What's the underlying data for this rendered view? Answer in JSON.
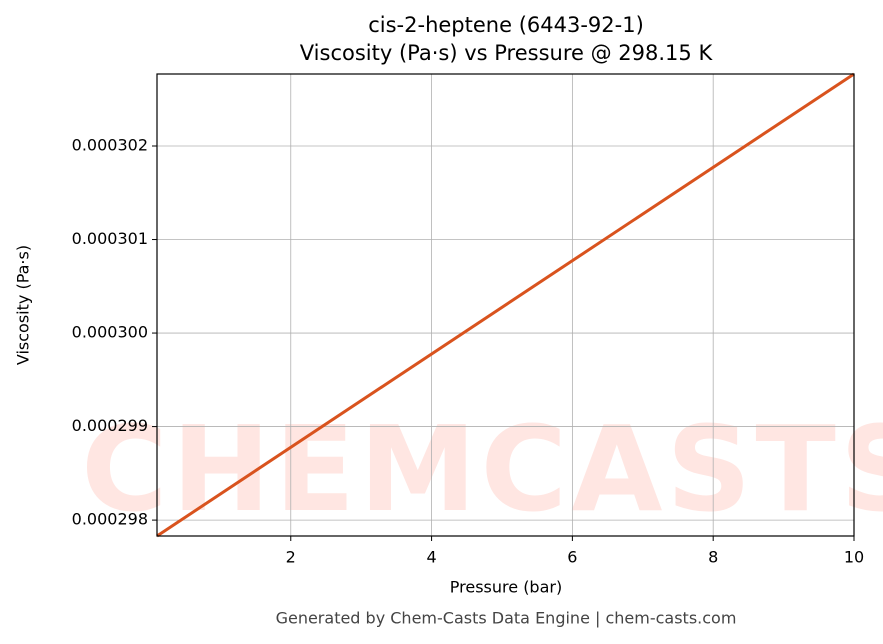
{
  "chart_data": {
    "type": "line",
    "title": "cis-2-heptene (6443-92-1)",
    "subtitle": "Viscosity (Pa·s) vs Pressure @ 298.15 K",
    "x_label": "Pressure (bar)",
    "y_label": "Viscosity (Pa·s)",
    "footer": "Generated by Chem-Casts Data Engine | chem-casts.com",
    "watermark": "CHEMCASTS",
    "x": [
      0.1,
      10
    ],
    "series": [
      {
        "name": "Viscosity",
        "color": "#d9531e",
        "values": [
          0.00029783,
          0.00030277
        ]
      }
    ],
    "xlim": [
      0.1,
      10
    ],
    "ylim": [
      0.00029783,
      0.00030277
    ],
    "xticks": [
      2,
      4,
      6,
      8,
      10
    ],
    "yticks": [
      0.000298,
      0.000299,
      {
        "value": 0.0003,
        "label": "0.000300"
      },
      0.000301,
      0.000302
    ],
    "grid": true
  }
}
